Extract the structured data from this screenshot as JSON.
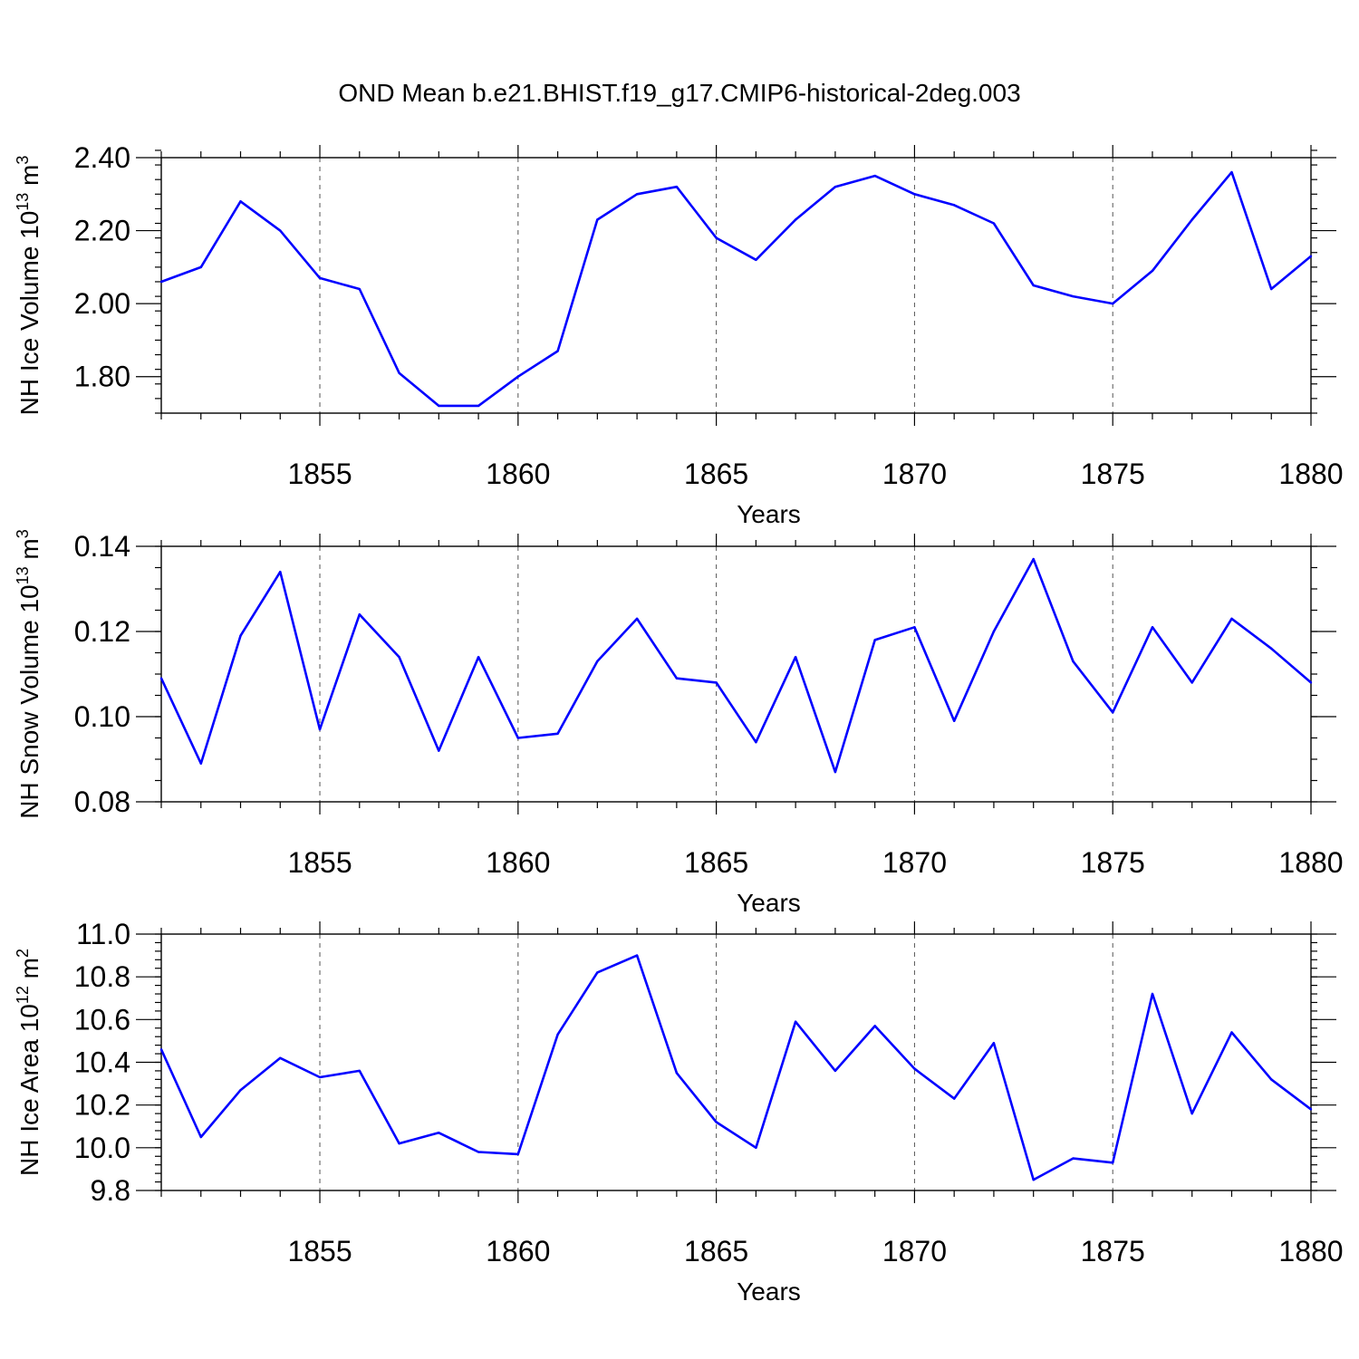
{
  "title": "OND Mean b.e21.BHIST.f19_g17.CMIP6-historical-2deg.003",
  "colors": {
    "line": "#0000ff",
    "axis": "#000000",
    "grid": "#555555"
  },
  "chart_data": [
    {
      "type": "line",
      "ylabel": {
        "base": "NH Ice Volume 10",
        "exp": "13",
        "unit": " m",
        "unit_exp": "3"
      },
      "xlabel": "Years",
      "xlim": [
        1851,
        1880
      ],
      "xticks": [
        1855,
        1860,
        1865,
        1870,
        1875,
        1880
      ],
      "ylim": [
        1.7,
        2.4
      ],
      "yticks": [
        1.8,
        2.0,
        2.2,
        2.4
      ],
      "ytick_labels": [
        "1.80",
        "2.00",
        "2.20",
        "2.40"
      ],
      "y_minor_step": 0.04,
      "grid": "vertical dashed at major x ticks",
      "x": [
        1851,
        1852,
        1853,
        1854,
        1855,
        1856,
        1857,
        1858,
        1859,
        1860,
        1861,
        1862,
        1863,
        1864,
        1865,
        1866,
        1867,
        1868,
        1869,
        1870,
        1871,
        1872,
        1873,
        1874,
        1875,
        1876,
        1877,
        1878,
        1879,
        1880
      ],
      "series": [
        {
          "name": "NH Ice Volume",
          "values": [
            2.06,
            2.1,
            2.28,
            2.2,
            2.07,
            2.04,
            1.81,
            1.72,
            1.72,
            1.8,
            1.87,
            2.23,
            2.3,
            2.32,
            2.18,
            2.12,
            2.23,
            2.32,
            2.35,
            2.3,
            2.27,
            2.22,
            2.05,
            2.02,
            2.0,
            2.09,
            2.23,
            2.36,
            2.04,
            2.13
          ]
        }
      ]
    },
    {
      "type": "line",
      "ylabel": {
        "base": "NH Snow Volume 10",
        "exp": "13",
        "unit": " m",
        "unit_exp": "3"
      },
      "xlabel": "Years",
      "xlim": [
        1851,
        1880
      ],
      "xticks": [
        1855,
        1860,
        1865,
        1870,
        1875,
        1880
      ],
      "ylim": [
        0.08,
        0.14
      ],
      "yticks": [
        0.08,
        0.1,
        0.12,
        0.14
      ],
      "ytick_labels": [
        "0.08",
        "0.10",
        "0.12",
        "0.14"
      ],
      "y_minor_step": 0.005,
      "grid": "vertical dashed at major x ticks",
      "x": [
        1851,
        1852,
        1853,
        1854,
        1855,
        1856,
        1857,
        1858,
        1859,
        1860,
        1861,
        1862,
        1863,
        1864,
        1865,
        1866,
        1867,
        1868,
        1869,
        1870,
        1871,
        1872,
        1873,
        1874,
        1875,
        1876,
        1877,
        1878,
        1879,
        1880
      ],
      "series": [
        {
          "name": "NH Snow Volume",
          "values": [
            0.109,
            0.089,
            0.119,
            0.134,
            0.097,
            0.124,
            0.114,
            0.092,
            0.114,
            0.095,
            0.096,
            0.113,
            0.123,
            0.109,
            0.108,
            0.094,
            0.114,
            0.087,
            0.118,
            0.121,
            0.099,
            0.12,
            0.137,
            0.113,
            0.101,
            0.121,
            0.108,
            0.123,
            0.116,
            0.108
          ]
        }
      ]
    },
    {
      "type": "line",
      "ylabel": {
        "base": "NH Ice Area 10",
        "exp": "12",
        "unit": " m",
        "unit_exp": "2"
      },
      "xlabel": "Years",
      "xlim": [
        1851,
        1880
      ],
      "xticks": [
        1855,
        1860,
        1865,
        1870,
        1875,
        1880
      ],
      "ylim": [
        9.8,
        11.0
      ],
      "yticks": [
        9.8,
        10.0,
        10.2,
        10.4,
        10.6,
        10.8,
        11.0
      ],
      "ytick_labels": [
        "9.8",
        "10.0",
        "10.2",
        "10.4",
        "10.6",
        "10.8",
        "11.0"
      ],
      "y_minor_step": 0.04,
      "grid": "vertical dashed at major x ticks",
      "x": [
        1851,
        1852,
        1853,
        1854,
        1855,
        1856,
        1857,
        1858,
        1859,
        1860,
        1861,
        1862,
        1863,
        1864,
        1865,
        1866,
        1867,
        1868,
        1869,
        1870,
        1871,
        1872,
        1873,
        1874,
        1875,
        1876,
        1877,
        1878,
        1879,
        1880
      ],
      "series": [
        {
          "name": "NH Ice Area",
          "values": [
            10.46,
            10.05,
            10.27,
            10.42,
            10.33,
            10.36,
            10.02,
            10.07,
            9.98,
            9.97,
            10.53,
            10.82,
            10.9,
            10.35,
            10.12,
            10.0,
            10.59,
            10.36,
            10.57,
            10.37,
            10.23,
            10.49,
            9.85,
            9.95,
            9.93,
            10.72,
            10.16,
            10.54,
            10.32,
            10.18
          ]
        }
      ]
    }
  ]
}
